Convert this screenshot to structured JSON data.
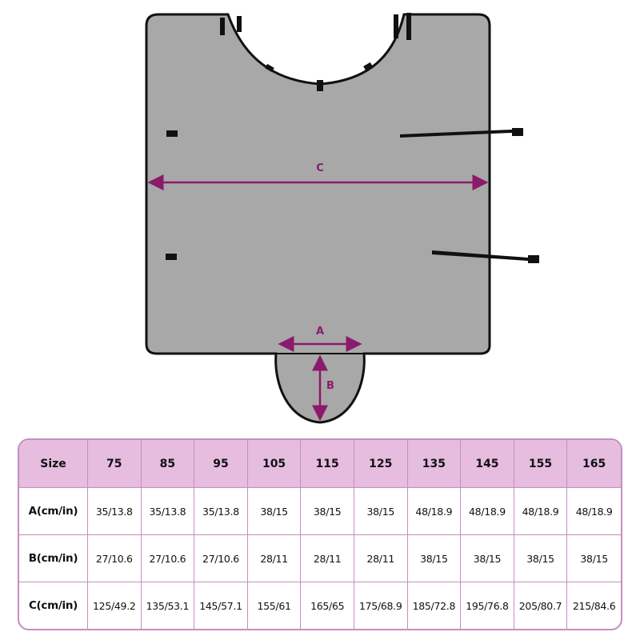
{
  "diagram": {
    "labels": {
      "a": "A",
      "b": "B",
      "c": "C"
    },
    "colors": {
      "mat": "#a8a8a8",
      "border": "#111111",
      "arrow": "#8b1a6b"
    }
  },
  "size_table": {
    "header_color": "#e6bdde",
    "border_color": "#c58ec0",
    "columns": [
      "Size",
      "75",
      "85",
      "95",
      "105",
      "115",
      "125",
      "135",
      "145",
      "155",
      "165"
    ],
    "rows": [
      {
        "label": "A(cm/in)",
        "values": [
          "35/13.8",
          "35/13.8",
          "35/13.8",
          "38/15",
          "38/15",
          "38/15",
          "48/18.9",
          "48/18.9",
          "48/18.9",
          "48/18.9"
        ]
      },
      {
        "label": "B(cm/in)",
        "values": [
          "27/10.6",
          "27/10.6",
          "27/10.6",
          "28/11",
          "28/11",
          "28/11",
          "38/15",
          "38/15",
          "38/15",
          "38/15"
        ]
      },
      {
        "label": "C(cm/in)",
        "values": [
          "125/49.2",
          "135/53.1",
          "145/57.1",
          "155/61",
          "165/65",
          "175/68.9",
          "185/72.8",
          "195/76.8",
          "205/80.7",
          "215/84.6"
        ]
      }
    ]
  }
}
